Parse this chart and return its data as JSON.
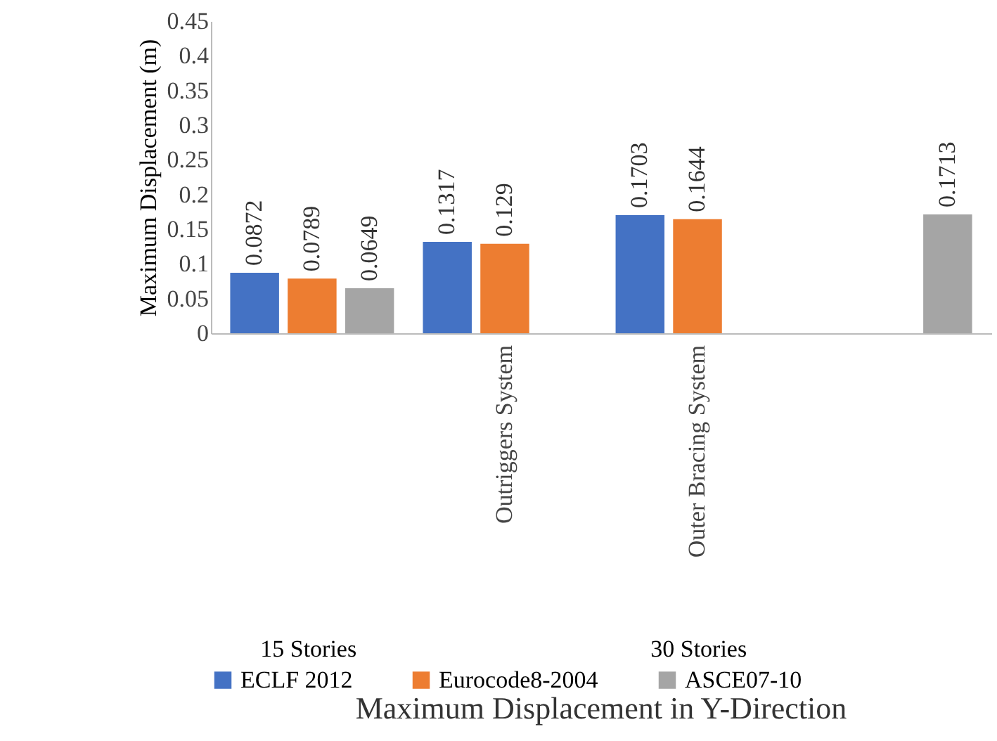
{
  "chart_data": {
    "type": "bar",
    "title": "Maximum Displacement in Y-Direction",
    "ylabel": "Maximum Displacement (m)",
    "categories": [
      null,
      "Outriggers System",
      "Outer Bracing System",
      null
    ],
    "annotations": [
      "15 Stories",
      "30 Stories"
    ],
    "series": [
      {
        "name": "ECLF 2012",
        "color": "#4472c4",
        "values": [
          0.0872,
          0.1317,
          0.1703,
          null
        ]
      },
      {
        "name": "Eurocode8-2004",
        "color": "#ed7d31",
        "values": [
          0.0789,
          0.129,
          0.1644,
          null
        ]
      },
      {
        "name": "ASCE07-10",
        "color": "#a5a5a5",
        "values": [
          0.0649,
          null,
          null,
          0.1713
        ]
      }
    ],
    "ylim": [
      0,
      0.45
    ],
    "yticks": [
      0,
      0.05,
      0.1,
      0.15,
      0.2,
      0.25,
      0.3,
      0.35,
      0.4,
      0.45
    ],
    "data_labels": true,
    "grid": false,
    "legend": "bottom"
  }
}
